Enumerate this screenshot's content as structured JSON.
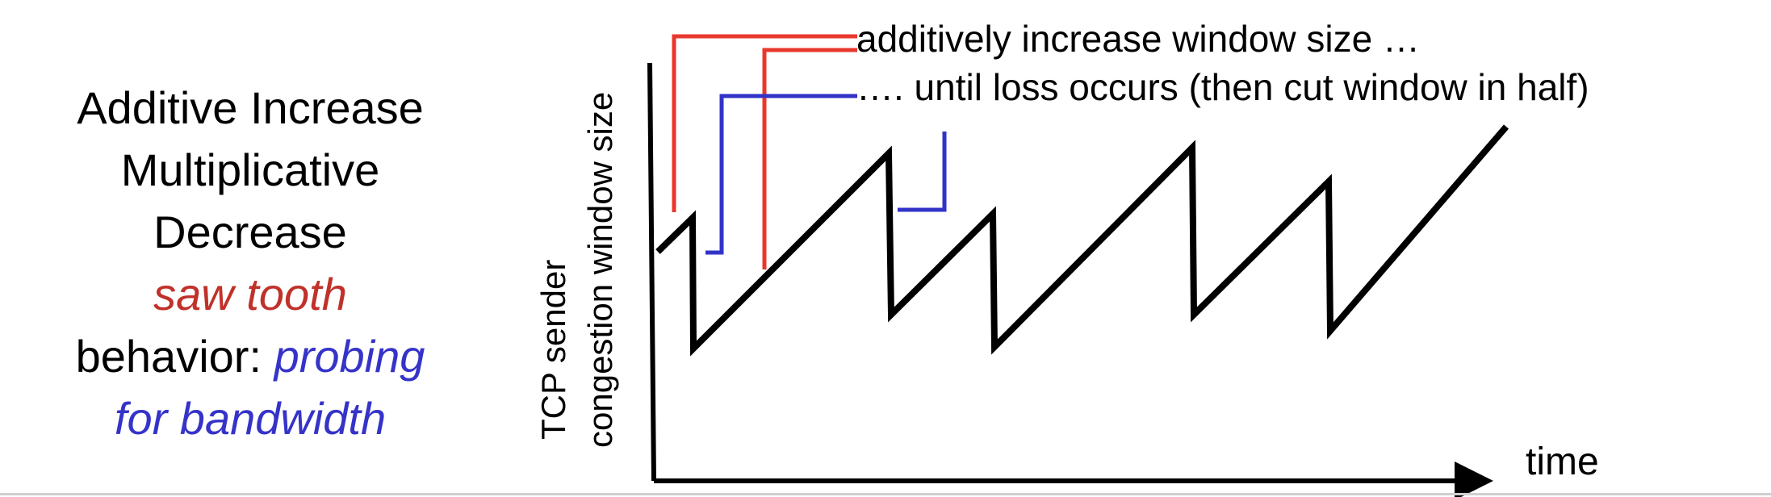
{
  "heading_lines": [
    {
      "text": "Additive Increase"
    },
    {
      "text": "Multiplicative"
    },
    {
      "text": "Decrease"
    }
  ],
  "emphasis": {
    "saw_tooth": "saw tooth",
    "behavior_prefix": "behavior: ",
    "probing": "probing",
    "for_bandwidth": "for bandwidth"
  },
  "axes": {
    "y_label_line1": "TCP sender",
    "y_label_line2": "congestion window size",
    "x_label": "time"
  },
  "annotations": {
    "increase": "additively increase window size …",
    "loss": "…. until loss occurs (then cut window in half)"
  },
  "colors": {
    "text": "#000000",
    "red": "#c0312a",
    "red_line": "#e8382d",
    "blue": "#3533c8",
    "blue_line": "#3232c8",
    "curve": "#000000"
  }
}
